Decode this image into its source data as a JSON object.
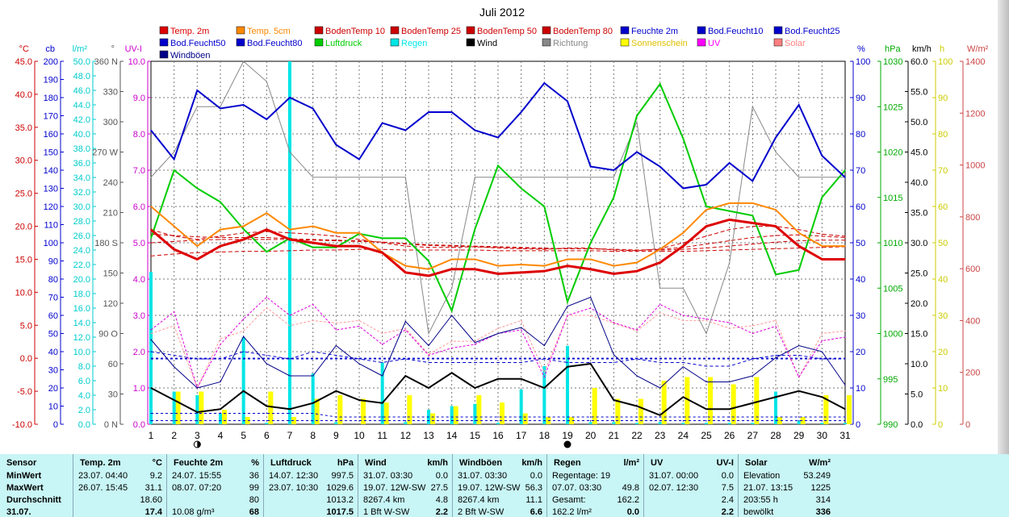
{
  "chart_data": {
    "type": "line",
    "title": "Juli 2012",
    "x": [
      1,
      2,
      3,
      4,
      5,
      6,
      7,
      8,
      9,
      10,
      11,
      12,
      13,
      14,
      15,
      16,
      17,
      18,
      19,
      20,
      21,
      22,
      23,
      24,
      25,
      26,
      27,
      28,
      29,
      30,
      31
    ],
    "left_axes": [
      {
        "unit": "°C",
        "color": "#cc0000",
        "min": -10,
        "max": 45,
        "step": 5,
        "ticks": [
          "45.0",
          "40.0",
          "35.0",
          "30.0",
          "25.0",
          "20.0",
          "15.0",
          "10.0",
          "5.0",
          "0.0",
          "-5.0",
          "-10.0"
        ]
      },
      {
        "unit": "cb",
        "color": "#0000cc",
        "min": 0,
        "max": 200,
        "step": 10,
        "ticks": [
          "200",
          "190",
          "180",
          "170",
          "160",
          "150",
          "140",
          "130",
          "120",
          "110",
          "100",
          "90",
          "80",
          "70",
          "60",
          "50",
          "40",
          "30",
          "20",
          "10",
          "0"
        ]
      },
      {
        "unit": "l/m²",
        "color": "#00cccc",
        "min": 0,
        "max": 50,
        "step": 2,
        "ticks": [
          "50.0",
          "48.0",
          "46.0",
          "44.0",
          "42.0",
          "40.0",
          "38.0",
          "36.0",
          "34.0",
          "32.0",
          "30.0",
          "28.0",
          "26.0",
          "24.0",
          "22.0",
          "20.0",
          "18.0",
          "16.0",
          "14.0",
          "12.0",
          "10.0",
          "8.0",
          "6.0",
          "4.0",
          "2.0",
          "0.0"
        ]
      },
      {
        "unit": "°",
        "color": "#555555",
        "min": 0,
        "max": 360,
        "step": 30,
        "ticks": [
          "360 N",
          "330",
          "300",
          "270 W",
          "240",
          "210",
          "180 S",
          "150",
          "120",
          "90 O",
          "60",
          "30",
          "0 N"
        ]
      },
      {
        "unit": "UV-I",
        "color": "#cc00cc",
        "min": 0,
        "max": 10,
        "step": 1,
        "ticks": [
          "10.0",
          "9.0",
          "8.0",
          "7.0",
          "6.0",
          "5.0",
          "4.0",
          "3.0",
          "2.0",
          "1.0",
          "0.0"
        ]
      }
    ],
    "right_axes": [
      {
        "unit": "%",
        "color": "#0000cc",
        "min": 0,
        "max": 100,
        "step": 10,
        "ticks": [
          "100",
          "90",
          "80",
          "70",
          "60",
          "50",
          "40",
          "30",
          "20",
          "10",
          "0"
        ]
      },
      {
        "unit": "hPa",
        "color": "#00aa00",
        "min": 990,
        "max": 1030,
        "step": 5,
        "ticks": [
          "1030",
          "1025",
          "1020",
          "1015",
          "1010",
          "1005",
          "1000",
          "995",
          "990"
        ]
      },
      {
        "unit": "km/h",
        "color": "#000000",
        "min": 0,
        "max": 60,
        "step": 5,
        "ticks": [
          "60.0",
          "55.0",
          "50.0",
          "45.0",
          "40.0",
          "35.0",
          "30.0",
          "25.0",
          "20.0",
          "15.0",
          "10.0",
          "5.0",
          "0.0"
        ]
      },
      {
        "unit": "h",
        "color": "#cccc00",
        "min": 0,
        "max": 100,
        "step": 10,
        "ticks": [
          "100",
          "90",
          "80",
          "70",
          "60",
          "50",
          "40",
          "30",
          "20",
          "10",
          "0"
        ]
      },
      {
        "unit": "W/m²",
        "color": "#cc4444",
        "min": 0,
        "max": 1400,
        "step": 200,
        "ticks": [
          "1400",
          "1200",
          "1000",
          "800",
          "600",
          "400",
          "200",
          "0"
        ]
      }
    ],
    "legend": [
      {
        "label": "Temp. 2m",
        "color": "#dd0000"
      },
      {
        "label": "Temp. 5cm",
        "color": "#ff8800"
      },
      {
        "label": "BodenTemp 10",
        "color": "#cc0000"
      },
      {
        "label": "BodenTemp 25",
        "color": "#cc0000"
      },
      {
        "label": "BodenTemp 50",
        "color": "#cc0000"
      },
      {
        "label": "BodenTemp 80",
        "color": "#cc0000"
      },
      {
        "label": "Feuchte 2m",
        "color": "#0000cc"
      },
      {
        "label": "Bod.Feucht10",
        "color": "#0000cc"
      },
      {
        "label": "Bod.Feucht25",
        "color": "#0000cc"
      },
      {
        "label": "Bod.Feucht50",
        "color": "#0000cc"
      },
      {
        "label": "Bod.Feucht80",
        "color": "#0000cc"
      },
      {
        "label": "Luftdruck",
        "color": "#00cc00"
      },
      {
        "label": "Regen",
        "color": "#00e5e5"
      },
      {
        "label": "Wind",
        "color": "#000000"
      },
      {
        "label": "Richtung",
        "color": "#888888"
      },
      {
        "label": "Sonnenschein",
        "color": "#ffff00"
      },
      {
        "label": "UV",
        "color": "#ff00ff"
      },
      {
        "label": "Solar",
        "color": "#ff8080"
      },
      {
        "label": "Windböen",
        "color": "#000088"
      }
    ],
    "series": {
      "temp2m": [
        19.5,
        16.5,
        15.0,
        17.0,
        18.0,
        19.5,
        18.0,
        17.5,
        17.0,
        17.0,
        16.0,
        13.0,
        12.5,
        13.5,
        13.5,
        12.8,
        13.0,
        13.2,
        14.0,
        13.5,
        12.8,
        13.2,
        14.5,
        17.0,
        20.0,
        21.0,
        20.5,
        20.0,
        17.0,
        15.0,
        15.0
      ],
      "temp5cm": [
        23.0,
        20.0,
        17.0,
        19.5,
        20.0,
        22.0,
        19.5,
        20.0,
        19.0,
        19.0,
        16.0,
        14.0,
        13.5,
        15.0,
        15.0,
        14.0,
        14.2,
        14.0,
        15.0,
        15.0,
        14.0,
        14.5,
        16.5,
        19.0,
        22.5,
        23.5,
        23.5,
        22.5,
        19.0,
        17.0,
        17.0
      ],
      "feuchte2m": [
        81,
        73,
        92,
        87,
        88,
        84,
        90,
        87,
        77,
        73,
        83,
        81,
        86,
        86,
        81,
        79,
        86,
        94,
        89,
        71,
        70,
        75,
        71,
        65,
        66,
        72,
        67,
        79,
        88,
        74,
        68
      ],
      "luftdruck": [
        1010.5,
        1018.0,
        1016.0,
        1014.5,
        1011.5,
        1009.0,
        1010.5,
        1009.5,
        1009.5,
        1011.0,
        1010.5,
        1010.5,
        1008.0,
        1002.5,
        1011.5,
        1018.5,
        1016.0,
        1014.0,
        1003.5,
        1010.0,
        1015.0,
        1024.0,
        1027.5,
        1021.5,
        1014.0,
        1013.5,
        1013.0,
        1006.5,
        1007.0,
        1015.0,
        1018.0
      ],
      "wind": [
        6.0,
        4.0,
        2.0,
        2.5,
        5.5,
        3.0,
        2.5,
        3.5,
        5.5,
        4.0,
        3.5,
        8.0,
        6.0,
        8.5,
        6.0,
        7.5,
        7.5,
        6.0,
        9.5,
        10.0,
        4.0,
        3.0,
        1.5,
        4.5,
        2.5,
        2.5,
        3.5,
        4.5,
        5.5,
        4.5,
        2.5
      ],
      "windboeen": [
        14.0,
        9.5,
        6.0,
        7.0,
        14.5,
        10.0,
        8.0,
        8.0,
        13.0,
        10.0,
        8.0,
        17.0,
        13.0,
        18.0,
        13.5,
        15.0,
        16.0,
        13.0,
        19.5,
        21.0,
        11.5,
        8.0,
        6.0,
        9.5,
        7.0,
        7.0,
        8.0,
        11.0,
        13.0,
        12.0,
        6.5
      ],
      "richtung": [
        245,
        270,
        315,
        315,
        360,
        340,
        270,
        245,
        245,
        245,
        245,
        245,
        90,
        135,
        245,
        245,
        245,
        245,
        245,
        245,
        245,
        300,
        135,
        135,
        90,
        160,
        315,
        270,
        245,
        245,
        245
      ],
      "uv": [
        2.6,
        3.1,
        1.0,
        2.2,
        2.9,
        3.5,
        3.0,
        3.3,
        2.6,
        2.7,
        2.2,
        2.6,
        1.9,
        2.1,
        2.2,
        2.5,
        2.6,
        1.3,
        3.0,
        3.2,
        2.8,
        2.6,
        3.3,
        3.0,
        2.9,
        2.8,
        2.5,
        2.7,
        1.3,
        2.3,
        2.4
      ],
      "solar": [
        350,
        380,
        140,
        330,
        360,
        450,
        380,
        400,
        390,
        400,
        350,
        370,
        270,
        320,
        320,
        370,
        400,
        200,
        420,
        420,
        390,
        360,
        430,
        400,
        400,
        370,
        380,
        400,
        180,
        350,
        360
      ],
      "regen": [
        21.0,
        4.5,
        4.0,
        1.5,
        12.0,
        0.2,
        50.0,
        7.0,
        0.3,
        0.0,
        8.5,
        0.3,
        2.0,
        2.5,
        2.8,
        0.2,
        4.8,
        8.0,
        10.8,
        0.3,
        0.3,
        0.2,
        0.3,
        0.2,
        0.2,
        0.2,
        0.2,
        4.5,
        0.5,
        0.2,
        0.2
      ],
      "sonnenschein": [
        0,
        9,
        9,
        4,
        2,
        9,
        2,
        7,
        8,
        7,
        6,
        8,
        3,
        5,
        8,
        6,
        3,
        2,
        2,
        10,
        7,
        7,
        12,
        13,
        13,
        11,
        13,
        2,
        2,
        8,
        8
      ],
      "boden10": [
        19.5,
        18.5,
        18.0,
        18.5,
        19.0,
        19.2,
        19.0,
        18.8,
        18.5,
        18.0,
        17.5,
        17.0,
        16.8,
        16.8,
        16.9,
        16.7,
        16.6,
        16.5,
        16.7,
        16.7,
        16.4,
        16.3,
        16.6,
        17.5,
        18.5,
        19.5,
        20.0,
        20.0,
        19.5,
        18.8,
        18.5
      ],
      "boden25": [
        18.8,
        18.6,
        18.4,
        18.3,
        18.3,
        18.3,
        18.1,
        18.0,
        17.9,
        17.8,
        17.6,
        17.3,
        17.1,
        17.0,
        16.9,
        16.8,
        16.7,
        16.6,
        16.6,
        16.6,
        16.5,
        16.4,
        16.5,
        16.8,
        17.3,
        17.8,
        18.3,
        18.6,
        18.7,
        18.5,
        18.3
      ],
      "boden50": [
        17.5,
        17.7,
        17.9,
        18.0,
        18.0,
        18.0,
        18.0,
        17.9,
        17.8,
        17.7,
        17.6,
        17.4,
        17.2,
        17.1,
        17.0,
        16.9,
        16.8,
        16.7,
        16.6,
        16.6,
        16.5,
        16.4,
        16.4,
        16.5,
        16.7,
        17.0,
        17.3,
        17.6,
        17.8,
        17.9,
        17.9
      ],
      "boden80": [
        15.5,
        15.8,
        16.0,
        16.1,
        16.2,
        16.2,
        16.3,
        16.4,
        16.4,
        16.5,
        16.5,
        16.4,
        16.4,
        16.4,
        16.4,
        16.3,
        16.3,
        16.3,
        16.3,
        16.3,
        16.2,
        16.2,
        16.2,
        16.2,
        16.3,
        16.4,
        16.5,
        16.6,
        16.7,
        16.8,
        16.9
      ],
      "bodfeucht10": [
        20,
        19,
        18,
        18,
        20,
        19,
        18,
        20,
        19,
        18,
        17,
        18,
        17,
        17,
        17,
        17,
        17,
        18,
        17,
        17,
        17,
        18,
        17,
        17,
        16,
        16,
        18,
        19,
        19,
        18,
        18
      ],
      "bodfeucht80": [
        3,
        3,
        3,
        3,
        3,
        3,
        3,
        3,
        2,
        2,
        2,
        2,
        2,
        2,
        2,
        2,
        2,
        2,
        2,
        2,
        2,
        2,
        2,
        2,
        2,
        2,
        2,
        2,
        2,
        2,
        2
      ],
      "bodfeucht25": [
        1,
        1,
        1,
        1,
        1,
        1,
        1,
        1,
        1,
        1,
        1,
        1,
        1,
        1,
        1,
        1,
        1,
        1,
        1,
        1,
        1,
        1,
        1,
        1,
        1,
        1,
        1,
        1,
        1,
        1,
        1
      ]
    },
    "reference_lines": {
      "humidity_dotted": 18,
      "temp_zero": 0
    },
    "markers": [
      {
        "day": 3,
        "symbol": "first-quarter"
      },
      {
        "day": 19,
        "symbol": "new-moon"
      }
    ]
  },
  "stats": {
    "columns": [
      {
        "header": "Sensor",
        "rows": [
          "MinWert",
          "MaxWert",
          "Durchschnitt",
          "31.07."
        ]
      },
      {
        "header": "Temp. 2m",
        "unit": "°C",
        "rows": [
          [
            "23.07.  04:40",
            "9.2"
          ],
          [
            "26.07.  15:45",
            "31.1"
          ],
          [
            "",
            "18.60"
          ],
          [
            "",
            "17.4"
          ]
        ]
      },
      {
        "header": "Feuchte 2m",
        "unit": "%",
        "rows": [
          [
            "24.07.  15:55",
            "36"
          ],
          [
            "08.07.  07:20",
            "99"
          ],
          [
            "",
            "80"
          ],
          [
            "10.08 g/m³",
            "68"
          ]
        ]
      },
      {
        "header": "Luftdruck",
        "unit": "hPa",
        "rows": [
          [
            "14.07.  12:30",
            "997.5"
          ],
          [
            "23.07.  10:30",
            "1029.6"
          ],
          [
            "",
            "1013.2"
          ],
          [
            "",
            "1017.5"
          ]
        ]
      },
      {
        "header": "Wind",
        "unit": "km/h",
        "rows": [
          [
            "31.07.  03:30",
            "0.0"
          ],
          [
            "19.07.  12W-SW",
            "27.5"
          ],
          [
            "8267.4 km",
            "4.8"
          ],
          [
            "1 Bft W-SW",
            "2.2"
          ]
        ]
      },
      {
        "header": "Windböen",
        "unit": "km/h",
        "rows": [
          [
            "31.07.  03:30",
            "0.0"
          ],
          [
            "19.07.  12W-SW",
            "56.3"
          ],
          [
            "8267.4 km",
            "11.1"
          ],
          [
            "2 Bft W-SW",
            "6.6"
          ]
        ]
      },
      {
        "header": "Regen",
        "unit": "l/m²",
        "rows": [
          [
            "Regentage: 19",
            ""
          ],
          [
            "07.07.  03:30",
            "49.8"
          ],
          [
            "Gesamt:",
            "162.2"
          ],
          [
            "162.2 l/m²",
            "0.0"
          ]
        ]
      },
      {
        "header": "UV",
        "unit": "UV-I",
        "rows": [
          [
            "31.07.  00:00",
            "0.0"
          ],
          [
            "02.07.  12:30",
            "7.5"
          ],
          [
            "",
            "2.4"
          ],
          [
            "",
            "2.2"
          ]
        ]
      },
      {
        "header": "Solar",
        "unit": "W/m²",
        "rows": [
          [
            "Elevation",
            "53.249"
          ],
          [
            "21.07.  13:15",
            "1225"
          ],
          [
            "203:55 h",
            "314"
          ],
          [
            "bewölkt",
            "336"
          ]
        ]
      }
    ]
  }
}
